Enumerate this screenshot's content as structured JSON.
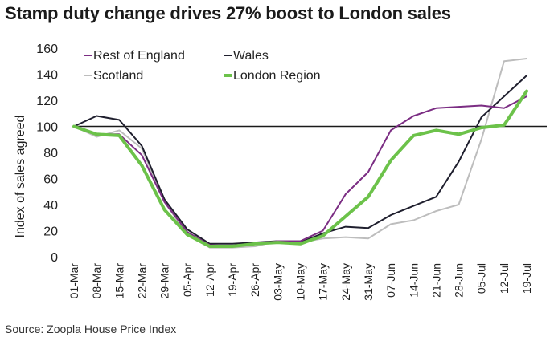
{
  "chart_data": {
    "type": "line",
    "title": "Stamp duty change drives 27% boost to London sales",
    "source": "Source: Zoopla House Price Index",
    "xlabel": "",
    "ylabel": "Index of sales agreed",
    "ylim": [
      0,
      160
    ],
    "yticks": [
      0,
      20,
      40,
      60,
      80,
      100,
      120,
      140,
      160
    ],
    "grid": false,
    "legend_position": "top-left",
    "reference_line": {
      "value": 100,
      "color": "#1a1a1a"
    },
    "categories": [
      "01-Mar",
      "08-Mar",
      "15-Mar",
      "22-Mar",
      "29-Mar",
      "05-Apr",
      "12-Apr",
      "19-Apr",
      "26-Apr",
      "03-May",
      "10-May",
      "17-May",
      "24-May",
      "31-May",
      "07-Jun",
      "14-Jun",
      "21-Jun",
      "28-Jun",
      "05-Jul",
      "12-Jul",
      "19-Jul"
    ],
    "series": [
      {
        "name": "Rest of England",
        "color": "#7b2d83",
        "width": 2,
        "values": [
          100,
          94,
          94,
          78,
          42,
          19,
          9,
          8,
          10,
          12,
          12,
          20,
          48,
          65,
          97,
          108,
          114,
          115,
          116,
          114,
          123
        ]
      },
      {
        "name": "Wales",
        "color": "#1f1f2e",
        "width": 2,
        "values": [
          100,
          108,
          105,
          85,
          44,
          21,
          10,
          10,
          11,
          12,
          11,
          18,
          23,
          22,
          32,
          39,
          46,
          73,
          107,
          123,
          139
        ]
      },
      {
        "name": "Scotland",
        "color": "#bdbdbd",
        "width": 2,
        "values": [
          100,
          92,
          97,
          83,
          42,
          17,
          7,
          7,
          8,
          12,
          11,
          14,
          15,
          14,
          25,
          28,
          35,
          40,
          90,
          150,
          152
        ]
      },
      {
        "name": "London Region",
        "color": "#6cc24a",
        "width": 4,
        "values": [
          100,
          94,
          93,
          70,
          36,
          17,
          8,
          8,
          10,
          11,
          10,
          16,
          31,
          46,
          74,
          93,
          97,
          94,
          99,
          101,
          127
        ]
      }
    ]
  }
}
